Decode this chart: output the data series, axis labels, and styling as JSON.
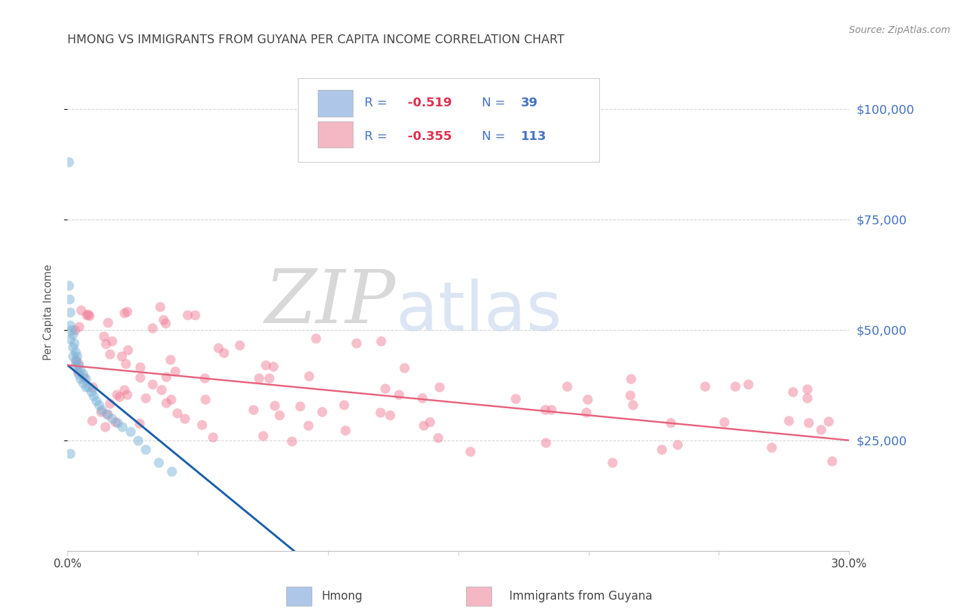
{
  "title": "HMONG VS IMMIGRANTS FROM GUYANA PER CAPITA INCOME CORRELATION CHART",
  "source": "Source: ZipAtlas.com",
  "ylabel": "Per Capita Income",
  "y_ticks": [
    25000,
    50000,
    75000,
    100000
  ],
  "y_tick_labels": [
    "$25,000",
    "$50,000",
    "$75,000",
    "$100,000"
  ],
  "x_range": [
    0.0,
    0.3
  ],
  "y_range": [
    0,
    108000
  ],
  "bottom_legend": [
    "Hmong",
    "Immigrants from Guyana"
  ],
  "watermark_zip": "ZIP",
  "watermark_atlas": "atlas",
  "hmong_color": "#7ab3d8",
  "guyana_color": "#f08098",
  "hmong_trend_color": "#1a5fa8",
  "guyana_trend_color": "#e8607a",
  "background_color": "#ffffff",
  "grid_color": "#cccccc",
  "title_color": "#444444",
  "right_tick_color": "#4472c4",
  "legend_blue_box": "#aec7e8",
  "legend_pink_box": "#f4b8c5",
  "legend_text_color": "#4472c4",
  "legend_r_color": "#e03050",
  "source_color": "#888888"
}
